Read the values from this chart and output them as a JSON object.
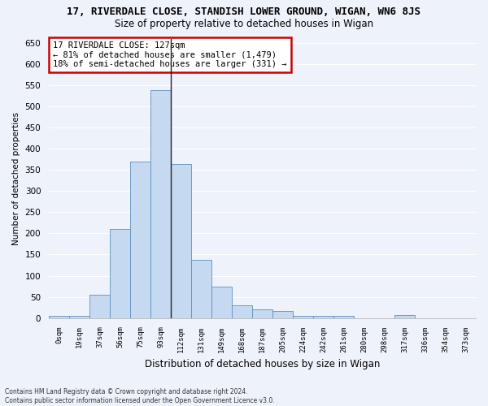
{
  "title": "17, RIVERDALE CLOSE, STANDISH LOWER GROUND, WIGAN, WN6 8JS",
  "subtitle": "Size of property relative to detached houses in Wigan",
  "xlabel": "Distribution of detached houses by size in Wigan",
  "ylabel": "Number of detached properties",
  "footer": "Contains HM Land Registry data © Crown copyright and database right 2024.\nContains public sector information licensed under the Open Government Licence v3.0.",
  "bar_labels": [
    "0sqm",
    "19sqm",
    "37sqm",
    "56sqm",
    "75sqm",
    "93sqm",
    "112sqm",
    "131sqm",
    "149sqm",
    "168sqm",
    "187sqm",
    "205sqm",
    "224sqm",
    "242sqm",
    "261sqm",
    "280sqm",
    "298sqm",
    "317sqm",
    "336sqm",
    "354sqm",
    "373sqm"
  ],
  "bar_values": [
    5,
    5,
    55,
    210,
    370,
    538,
    363,
    137,
    75,
    30,
    20,
    16,
    5,
    5,
    5,
    0,
    0,
    8,
    0,
    0,
    0
  ],
  "bar_color": "#c5d9f0",
  "bar_edge_color": "#6090c0",
  "property_line_x": 6.0,
  "annotation_text": "17 RIVERDALE CLOSE: 127sqm\n← 81% of detached houses are smaller (1,479)\n18% of semi-detached houses are larger (331) →",
  "annotation_box_color": "#ffffff",
  "annotation_box_edge": "#cc0000",
  "ylim": [
    0,
    660
  ],
  "yticks": [
    0,
    50,
    100,
    150,
    200,
    250,
    300,
    350,
    400,
    450,
    500,
    550,
    600,
    650
  ],
  "background_color": "#eef2fb",
  "grid_color": "#ffffff",
  "title_fontsize": 9,
  "subtitle_fontsize": 8.5
}
